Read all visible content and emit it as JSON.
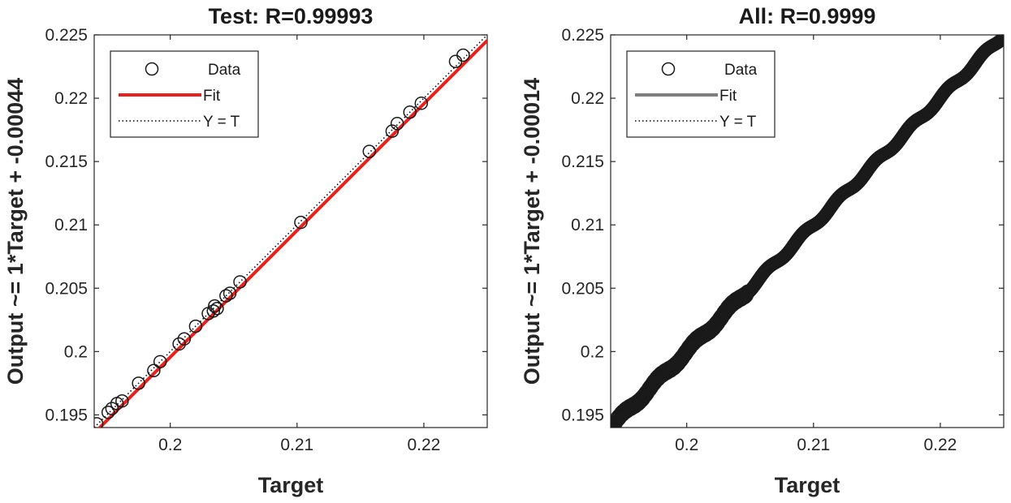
{
  "chart_data": [
    {
      "type": "scatter",
      "title": "Test: R=0.99993",
      "xlabel": "Target",
      "ylabel": "Output ~= 1*Target + -0.00044",
      "xlim": [
        0.194,
        0.225
      ],
      "ylim": [
        0.194,
        0.225
      ],
      "xticks": [
        0.2,
        0.21,
        0.22
      ],
      "xtick_labels": [
        "0.2",
        "0.21",
        "0.22"
      ],
      "yticks": [
        0.195,
        0.2,
        0.205,
        0.21,
        0.215,
        0.22,
        0.225
      ],
      "ytick_labels": [
        "0.195",
        "0.2",
        "0.205",
        "0.21",
        "0.215",
        "0.22",
        "0.225"
      ],
      "grid": false,
      "legend": {
        "position": "top-left",
        "entries": [
          {
            "label": "Data",
            "style": "circle-marker"
          },
          {
            "label": "Fit",
            "style": "solid-line",
            "color": "#e8211c"
          },
          {
            "label": "Y = T",
            "style": "dotted-line",
            "color": "#000000"
          }
        ]
      },
      "fit": {
        "slope": 1,
        "intercept": -0.00044,
        "color": "#e8211c"
      },
      "series": [
        {
          "name": "Data",
          "points": [
            [
              0.1942,
              0.1943
            ],
            [
              0.1951,
              0.1952
            ],
            [
              0.1954,
              0.1955
            ],
            [
              0.1958,
              0.1959
            ],
            [
              0.1962,
              0.1961
            ],
            [
              0.1975,
              0.1975
            ],
            [
              0.1987,
              0.1985
            ],
            [
              0.1992,
              0.1992
            ],
            [
              0.2007,
              0.2006
            ],
            [
              0.2011,
              0.201
            ],
            [
              0.202,
              0.202
            ],
            [
              0.203,
              0.203
            ],
            [
              0.2034,
              0.2032
            ],
            [
              0.2035,
              0.2036
            ],
            [
              0.2037,
              0.2034
            ],
            [
              0.2044,
              0.2044
            ],
            [
              0.2047,
              0.2046
            ],
            [
              0.2055,
              0.2055
            ],
            [
              0.2103,
              0.2102
            ],
            [
              0.2157,
              0.2158
            ],
            [
              0.2175,
              0.2174
            ],
            [
              0.2179,
              0.218
            ],
            [
              0.2189,
              0.2189
            ],
            [
              0.2198,
              0.2196
            ],
            [
              0.2225,
              0.2229
            ],
            [
              0.2231,
              0.2234
            ]
          ]
        }
      ]
    },
    {
      "type": "scatter",
      "title": "All: R=0.9999",
      "xlabel": "Target",
      "ylabel": "Output ~= 1*Target + -0.00014",
      "xlim": [
        0.194,
        0.225
      ],
      "ylim": [
        0.194,
        0.225
      ],
      "xticks": [
        0.2,
        0.21,
        0.22
      ],
      "xtick_labels": [
        "0.2",
        "0.21",
        "0.22"
      ],
      "yticks": [
        0.195,
        0.2,
        0.205,
        0.21,
        0.215,
        0.22,
        0.225
      ],
      "ytick_labels": [
        "0.195",
        "0.2",
        "0.205",
        "0.21",
        "0.215",
        "0.22",
        "0.225"
      ],
      "grid": false,
      "legend": {
        "position": "top-left",
        "entries": [
          {
            "label": "Data",
            "style": "circle-marker"
          },
          {
            "label": "Fit",
            "style": "solid-line",
            "color": "#7f7f7f"
          },
          {
            "label": "Y = T",
            "style": "dotted-line",
            "color": "#000000"
          }
        ]
      },
      "fit": {
        "slope": 1,
        "intercept": -0.00014,
        "color": "#7f7f7f"
      },
      "series": [
        {
          "name": "Data",
          "x_range": [
            0.194,
            0.225
          ],
          "dense_until": 0.2048,
          "wave_amplitude": 0.0002,
          "note_shape": "continuous band of circles along y = x"
        }
      ]
    }
  ]
}
